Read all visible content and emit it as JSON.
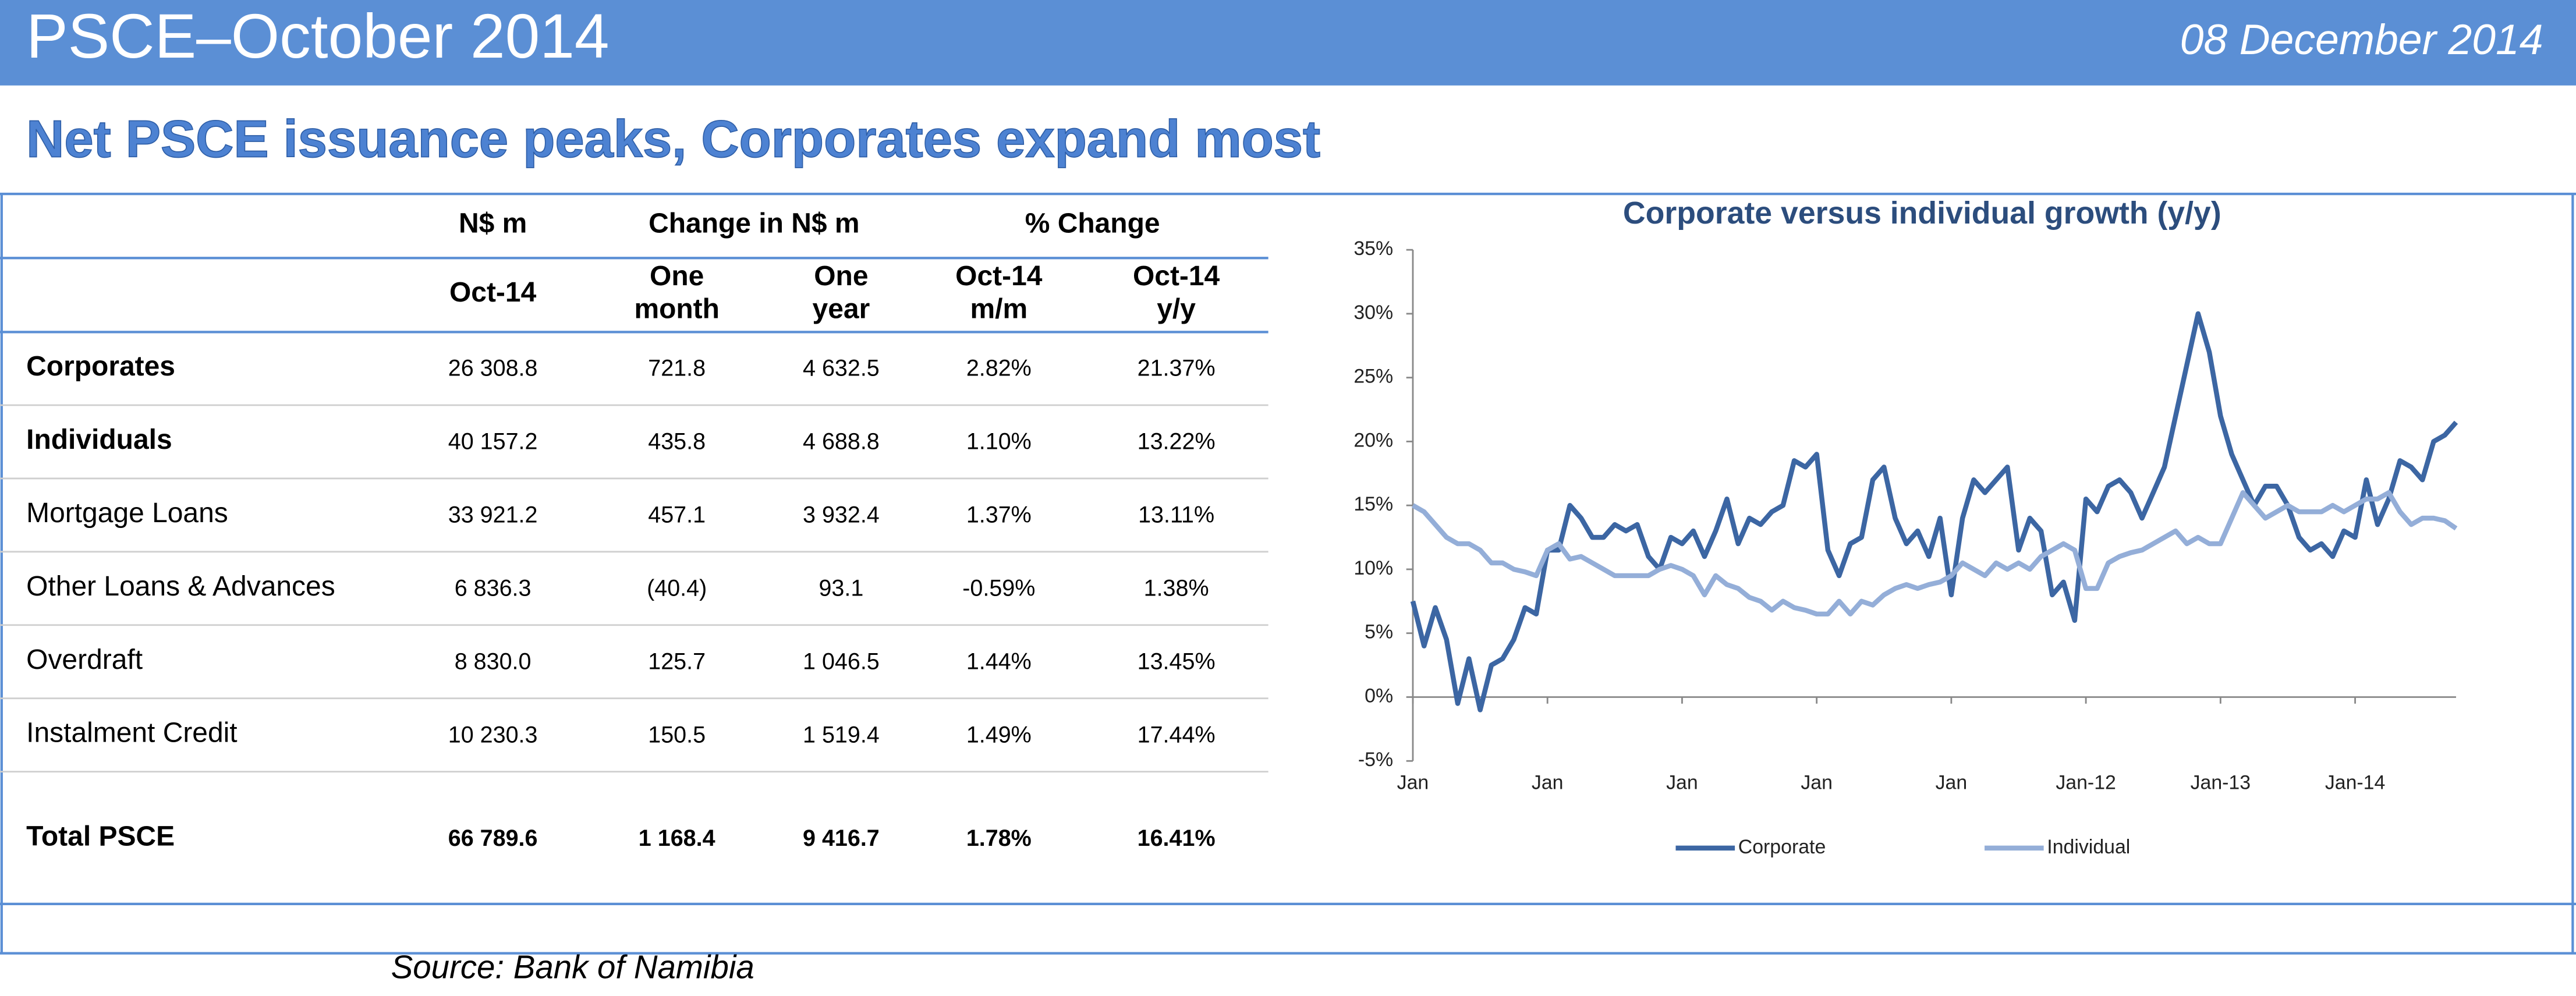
{
  "header": {
    "title": "PSCE–October 2014",
    "date": "08 December 2014"
  },
  "subtitle": "Net PSCE issuance peaks, Corporates expand most",
  "table": {
    "groups": [
      "N$ m",
      "Change in N$ m",
      "% Change"
    ],
    "columns": [
      [
        "Oct-14"
      ],
      [
        "One",
        "month"
      ],
      [
        "One",
        "year"
      ],
      [
        "Oct-14",
        "m/m"
      ],
      [
        "Oct-14",
        "y/y"
      ]
    ],
    "rows": [
      [
        "Corporates",
        "26 308.8",
        "721.8",
        "4 632.5",
        "2.82%",
        "21.37%"
      ],
      [
        "Individuals",
        "40 157.2",
        "435.8",
        "4 688.8",
        "1.10%",
        "13.22%"
      ],
      [
        "Mortgage Loans",
        "33 921.2",
        "457.1",
        "3 932.4",
        "1.37%",
        "13.11%"
      ],
      [
        "Other Loans & Advances",
        "6 836.3",
        "(40.4)",
        "93.1",
        "-0.59%",
        "1.38%"
      ],
      [
        "Overdraft",
        "8 830.0",
        "125.7",
        "1 046.5",
        "1.44%",
        "13.45%"
      ],
      [
        "Instalment Credit",
        "10 230.3",
        "150.5",
        "1 519.4",
        "1.49%",
        "17.44%"
      ]
    ],
    "total": [
      "Total PSCE",
      "66 789.6",
      "1 168.4",
      "9 416.7",
      "1.78%",
      "16.41%"
    ]
  },
  "source": "Source: Bank of Namibia",
  "chart_data": {
    "type": "line",
    "title": "Corporate versus individual growth (y/y)",
    "categories": [
      "Jan",
      null,
      null,
      null,
      null,
      null,
      null,
      null,
      null,
      null,
      null,
      null,
      "Jan",
      null,
      null,
      null,
      null,
      null,
      null,
      null,
      null,
      null,
      null,
      null,
      "Jan",
      null,
      null,
      null,
      null,
      null,
      null,
      null,
      null,
      null,
      null,
      null,
      "Jan",
      null,
      null,
      null,
      null,
      null,
      null,
      null,
      null,
      null,
      null,
      null,
      "Jan",
      null,
      null,
      null,
      null,
      null,
      null,
      null,
      null,
      null,
      null,
      null,
      "Jan-12",
      null,
      null,
      null,
      null,
      null,
      null,
      null,
      null,
      null,
      null,
      null,
      "Jan-13",
      null,
      null,
      null,
      null,
      null,
      null,
      null,
      null,
      null,
      null,
      null,
      "Jan-14",
      null,
      null,
      null,
      null,
      null,
      null,
      null,
      null,
      null
    ],
    "series": [
      {
        "name": "Corporate",
        "color": "#3c66a3",
        "values": [
          7.5,
          4,
          7,
          4.5,
          -0.5,
          3,
          -1,
          2.5,
          3,
          4.5,
          7,
          6.5,
          11.5,
          11.5,
          15,
          14,
          12.5,
          12.5,
          13.5,
          13,
          13.5,
          11,
          10,
          12.5,
          12,
          13,
          11,
          13,
          15.5,
          12,
          14,
          13.5,
          14.5,
          15,
          18.5,
          18,
          19,
          11.5,
          9.5,
          12,
          12.5,
          17,
          18,
          14,
          12,
          13,
          11,
          14,
          8,
          14,
          17,
          16,
          17,
          18,
          11.5,
          14,
          13,
          8,
          9,
          6,
          15.5,
          14.5,
          16.5,
          17,
          16,
          14,
          16,
          18,
          22,
          26,
          30,
          27,
          22,
          19,
          17,
          15,
          16.5,
          16.5,
          15,
          12.5,
          11.5,
          12,
          11,
          13,
          12.5,
          17,
          13.5,
          15.5,
          18.5,
          18,
          17,
          20,
          20.5,
          21.5
        ]
      },
      {
        "name": "Individual",
        "color": "#94aed8",
        "values": [
          15,
          14.5,
          13.5,
          12.5,
          12,
          12,
          11.5,
          10.5,
          10.5,
          10,
          9.8,
          9.5,
          11.5,
          12,
          10.8,
          11,
          10.5,
          10,
          9.5,
          9.5,
          9.5,
          9.5,
          10,
          10.3,
          10,
          9.5,
          8,
          9.5,
          8.8,
          8.5,
          7.8,
          7.5,
          6.8,
          7.5,
          7,
          6.8,
          6.5,
          6.5,
          7.5,
          6.5,
          7.5,
          7.2,
          8,
          8.5,
          8.8,
          8.5,
          8.8,
          9,
          9.5,
          10.5,
          10,
          9.5,
          10.5,
          10,
          10.5,
          10,
          11,
          11.5,
          12,
          11.5,
          8.5,
          8.5,
          10.5,
          11,
          11.3,
          11.5,
          12,
          12.5,
          13,
          12,
          12.5,
          12,
          12,
          14,
          16,
          15,
          14,
          14.5,
          15,
          14.5,
          14.5,
          14.5,
          15,
          14.5,
          15,
          15.5,
          15.5,
          16,
          14.5,
          13.5,
          14,
          14,
          13.8,
          13.2
        ]
      }
    ],
    "ylim": [
      -5,
      35
    ],
    "yticks": [
      {
        "value": -5,
        "label": "-5%"
      },
      {
        "value": 0,
        "label": "0%"
      },
      {
        "value": 5,
        "label": "5%"
      },
      {
        "value": 10,
        "label": "10%"
      },
      {
        "value": 15,
        "label": "15%"
      },
      {
        "value": 20,
        "label": "20%"
      },
      {
        "value": 25,
        "label": "25%"
      },
      {
        "value": 30,
        "label": "30%"
      },
      {
        "value": 35,
        "label": "35%"
      }
    ],
    "legend": "bottom"
  }
}
